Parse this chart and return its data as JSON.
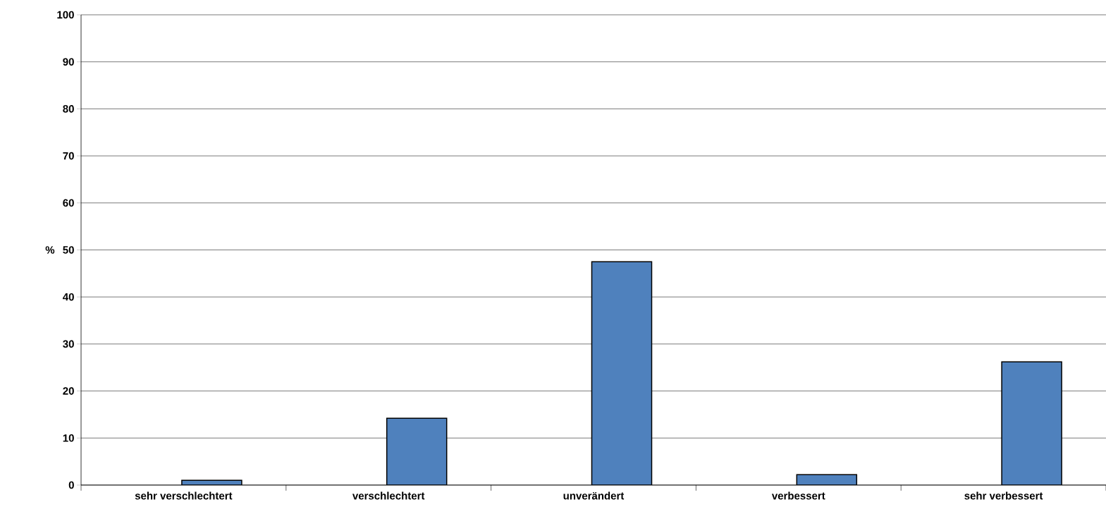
{
  "chart_data": {
    "type": "bar",
    "ylabel": "%",
    "categories": [
      "sehr verschlechtert",
      "verschlechtert",
      "unverändert",
      "verbessert",
      "sehr verbessert"
    ],
    "values": [
      1.0,
      14.2,
      47.5,
      2.2,
      26.2
    ],
    "color": "#4f81bd",
    "ylim": [
      0,
      100
    ],
    "yticks": [
      0,
      10,
      20,
      30,
      40,
      50,
      60,
      70,
      80,
      90,
      100
    ],
    "grid": "y"
  }
}
